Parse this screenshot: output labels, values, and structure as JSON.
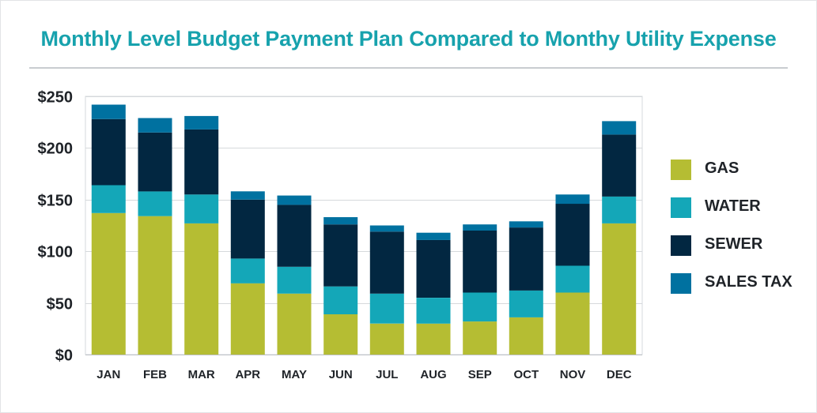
{
  "title": "Monthly Level Budget Payment Plan Compared to Monthy Utility Expense",
  "colors": {
    "gas": "#b5bd33",
    "water": "#14a7b8",
    "sewer": "#022741",
    "sales_tax": "#0071a0",
    "title": "#17a2ad",
    "grid": "#d6d9dc",
    "text": "#1f2328"
  },
  "chart_data": {
    "type": "bar",
    "stacked": true,
    "title": "Monthly Level Budget Payment Plan Compared to Monthy Utility Expense",
    "xlabel": "",
    "ylabel": "",
    "ylim": [
      0,
      250
    ],
    "yticks": [
      0,
      50,
      100,
      150,
      200,
      250
    ],
    "ytick_labels": [
      "$0",
      "$50",
      "$100",
      "$150",
      "$200",
      "$250"
    ],
    "grid": true,
    "legend_position": "right",
    "categories": [
      "JAN",
      "FEB",
      "MAR",
      "APR",
      "MAY",
      "JUN",
      "JUL",
      "AUG",
      "SEP",
      "OCT",
      "NOV",
      "DEC"
    ],
    "series": [
      {
        "name": "GAS",
        "color": "#b5bd33",
        "values": [
          137,
          134,
          127,
          69,
          59,
          39,
          30,
          30,
          32,
          36,
          60,
          127
        ]
      },
      {
        "name": "WATER",
        "color": "#14a7b8",
        "values": [
          27,
          24,
          28,
          24,
          26,
          27,
          29,
          25,
          28,
          26,
          26,
          26
        ]
      },
      {
        "name": "SEWER",
        "color": "#022741",
        "values": [
          64,
          57,
          63,
          57,
          60,
          60,
          60,
          56,
          60,
          61,
          60,
          60
        ]
      },
      {
        "name": "SALES TAX",
        "color": "#0071a0",
        "values": [
          14,
          14,
          13,
          8,
          9,
          7,
          6,
          7,
          6,
          6,
          9,
          13
        ]
      }
    ]
  }
}
